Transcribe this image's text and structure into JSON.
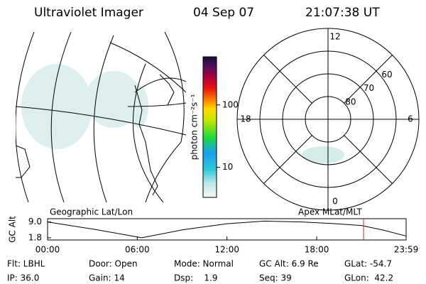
{
  "header": {
    "title": "Ultraviolet Imager",
    "date": "04 Sep 07",
    "time": "21:07:38 UT"
  },
  "map": {
    "label": "Geographic Lat/Lon"
  },
  "colorbar": {
    "label": "photon cm⁻²s⁻¹",
    "log": true,
    "lim": [
      3.3,
      590
    ],
    "ticks": [
      100,
      10
    ]
  },
  "polar": {
    "label": "Apex MLat/MLT",
    "mlt_ticks": [
      12,
      18,
      6,
      0
    ],
    "rlim": [
      90,
      50
    ],
    "rings": [
      80,
      70,
      60,
      50
    ],
    "lat_ticks": [
      60,
      70,
      80
    ]
  },
  "altitude": {
    "ylabel": "GC Alt",
    "yticks": [
      {
        "value": 9.0,
        "label": "9.0"
      },
      {
        "value": 1.8,
        "label": "1.8"
      }
    ],
    "ylim": [
      0.8,
      10.5
    ],
    "xlim": [
      0,
      23.98
    ],
    "xticks": [
      {
        "value": 0,
        "label": "00:00"
      },
      {
        "value": 6,
        "label": "06:00"
      },
      {
        "value": 12,
        "label": "12:00"
      },
      {
        "value": 18,
        "label": "18:00"
      },
      {
        "value": 23.98,
        "label": "23:59"
      }
    ],
    "x": [
      0,
      3,
      6.3,
      9,
      12,
      14.5,
      17,
      19,
      21,
      22.5,
      23.98
    ],
    "values": [
      9.0,
      5.8,
      1.8,
      5.4,
      8.2,
      9.4,
      9.0,
      8.3,
      7.4,
      5.2,
      2.6
    ],
    "marker": 21.13,
    "marker_color": "#d62020"
  },
  "footer": {
    "rows": [
      [
        "Flt: LBHL",
        "Door: Open",
        "Mode: Normal",
        "GC Alt: 6.9 Re",
        "GLat: -54.7"
      ],
      [
        "IP: 36.0",
        "Gain: 14",
        "Dsp:    1.9",
        "Seq: 39",
        "GLon:  42.2"
      ]
    ]
  }
}
